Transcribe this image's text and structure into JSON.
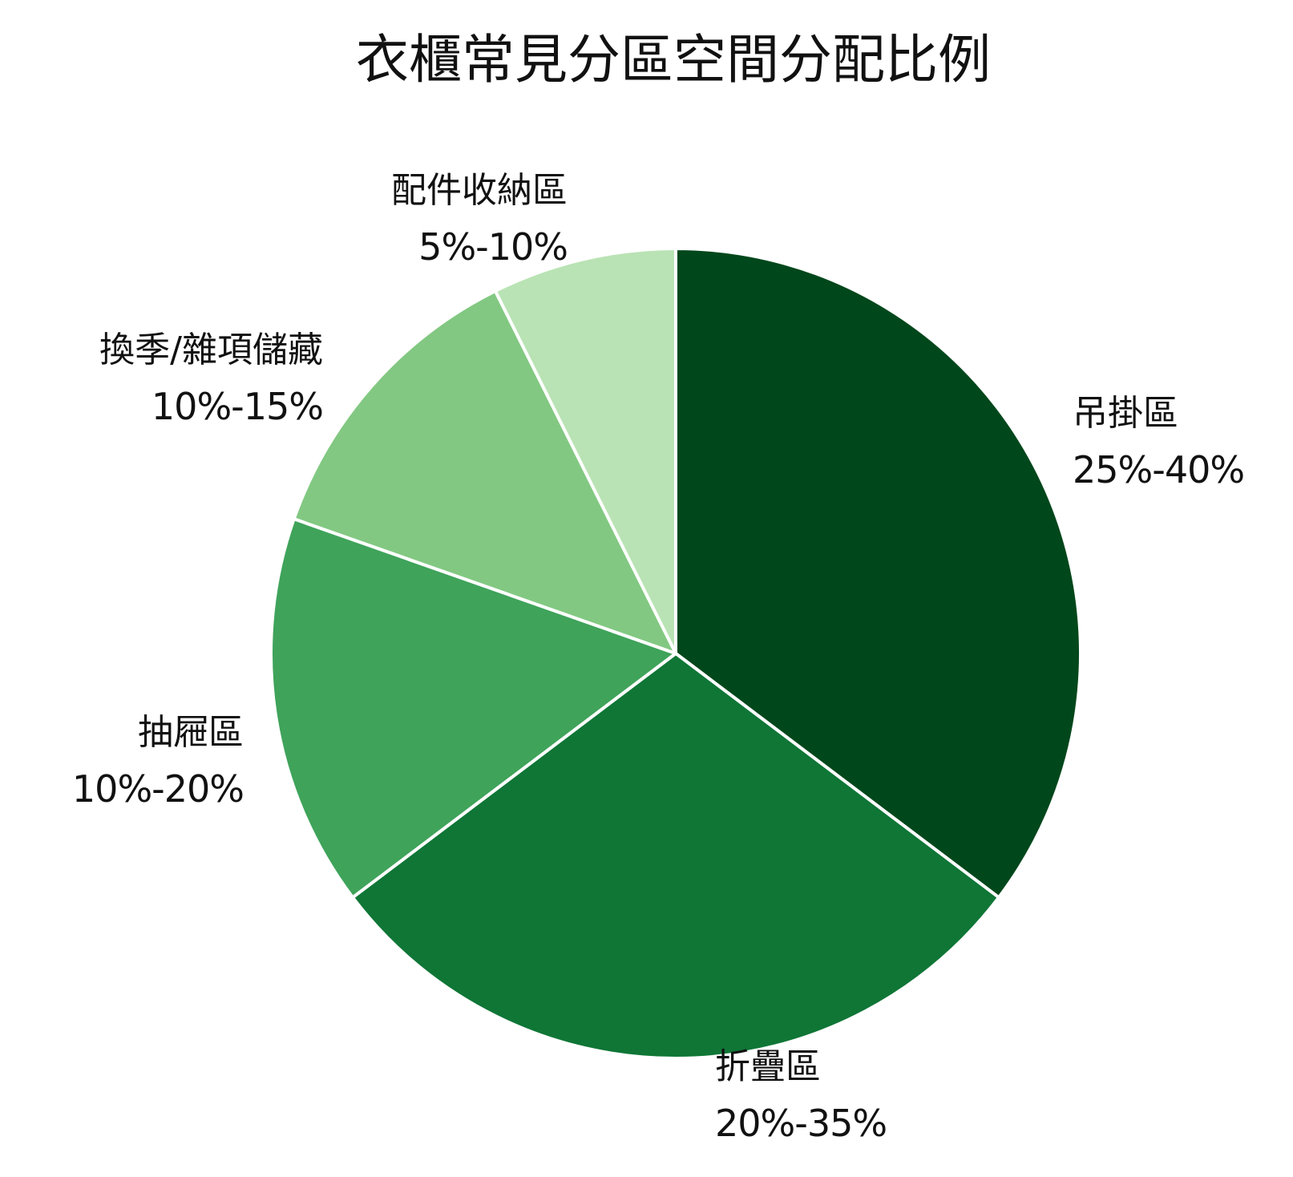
{
  "chart_data": {
    "type": "pie",
    "title": "衣櫃常見分區空間分配比例",
    "start_angle_deg": 0,
    "direction": "clockwise",
    "slices": [
      {
        "label": "吊掛區",
        "value_text": "25%-40%",
        "value": 36,
        "color": "#00471b"
      },
      {
        "label": "折疊區",
        "value_text": "20%-35%",
        "value": 30,
        "color": "#0f7636"
      },
      {
        "label": "抽屜區",
        "value_text": "10%-20%",
        "value": 16,
        "color": "#3fa35a"
      },
      {
        "label": "換季/雜項儲藏",
        "value_text": "10%-15%",
        "value": 12.5,
        "color": "#82c882"
      },
      {
        "label": "配件收納區",
        "value_text": "5%-10%",
        "value": 7.5,
        "color": "#b9e3b4"
      }
    ]
  }
}
